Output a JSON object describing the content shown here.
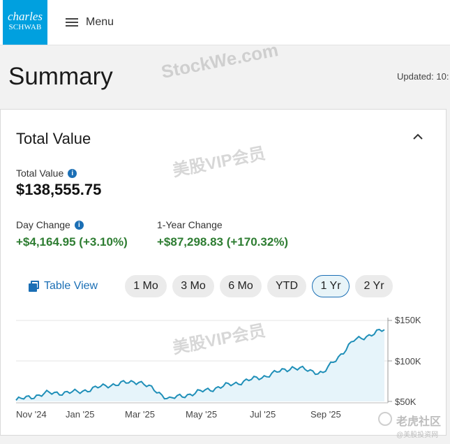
{
  "header": {
    "logo_line1": "charles",
    "logo_line2": "SCHWAB",
    "menu_label": "Menu"
  },
  "page": {
    "title": "Summary",
    "updated": "Updated: 10:"
  },
  "watermarks": {
    "main": "StockWe.com",
    "vip": "美股VIP会员",
    "corner_line1": "老虎社区",
    "corner_line2": "@美股投资网"
  },
  "card": {
    "title": "Total Value",
    "total_label": "Total Value",
    "total_value": "$138,555.75",
    "day_change_label": "Day Change",
    "day_change_value": "+$4,164.95 (+3.10%)",
    "year_change_label": "1-Year Change",
    "year_change_value": "+$87,298.83 (+170.32%)",
    "table_view_label": "Table View",
    "ranges": [
      "1 Mo",
      "3 Mo",
      "6 Mo",
      "YTD",
      "1 Yr",
      "2 Yr"
    ],
    "active_range": "1 Yr"
  },
  "colors": {
    "brand": "#00a0df",
    "link": "#1b6fb5",
    "positive": "#2e7d32",
    "line": "#1f8fb8",
    "area": "#e6f4fa"
  },
  "chart_data": {
    "type": "area",
    "x_ticks": [
      "Nov '24",
      "Jan '25",
      "Mar '25",
      "May '25",
      "Jul '25",
      "Sep '25"
    ],
    "y_ticks": [
      "$150K",
      "$100K",
      "$50K"
    ],
    "ylim": [
      50000,
      150000
    ],
    "x": [
      "Nov '24",
      "Dec '24",
      "Jan '25",
      "Feb '25",
      "Mar '25",
      "Apr '25",
      "May '25",
      "Jun '25",
      "Jul '25",
      "Aug '25",
      "Sep '25",
      "Oct '25",
      "Nov '25"
    ],
    "values": [
      51500,
      60000,
      61500,
      70000,
      75000,
      53000,
      62000,
      71000,
      80000,
      92000,
      85000,
      125000,
      138555
    ]
  }
}
